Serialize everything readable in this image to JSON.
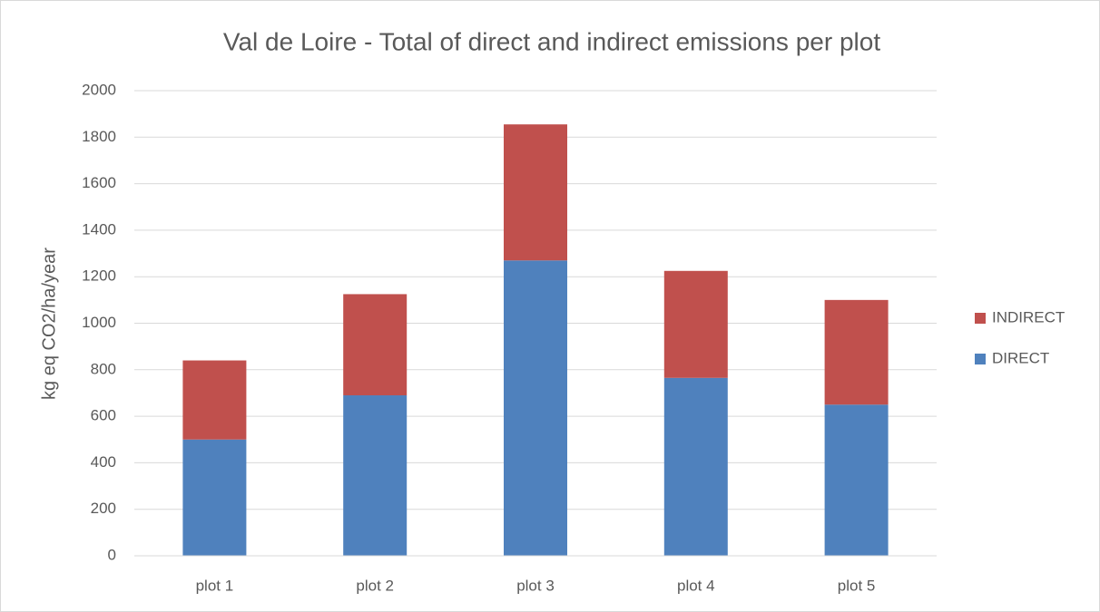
{
  "chart_data": {
    "type": "stacked_bar",
    "title": "Val de Loire - Total of direct and indirect emissions per plot",
    "y_label": "kg eq CO2/ha/year",
    "categories": [
      "plot 1",
      "plot 2",
      "plot 3",
      "plot 4",
      "plot 5"
    ],
    "series": [
      {
        "name": "DIRECT",
        "color": "#4f81bd",
        "values": [
          500,
          690,
          1270,
          765,
          650
        ]
      },
      {
        "name": "INDIRECT",
        "color": "#c0504d",
        "values": [
          340,
          435,
          585,
          460,
          450
        ]
      }
    ],
    "ylim": [
      0,
      2000
    ],
    "yticks": [
      0,
      200,
      400,
      600,
      800,
      1000,
      1200,
      1400,
      1600,
      1800,
      2000
    ],
    "grid": true,
    "legend": "right"
  }
}
